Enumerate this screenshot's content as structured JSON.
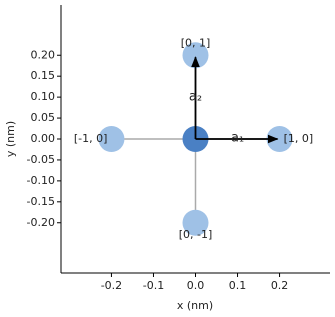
{
  "chart_data": {
    "type": "scatter",
    "xlabel": "x (nm)",
    "ylabel": "y (nm)",
    "x": [
      0,
      0,
      0,
      -0.2,
      0.2
    ],
    "y": [
      0,
      0.2,
      -0.2,
      0,
      0
    ],
    "point_labels": [
      null,
      "[0, 1]",
      "[0, -1]",
      "[-1, 0]",
      "[1, 0]"
    ],
    "colors": [
      "#4a80c4",
      "#9fc1e6",
      "#9fc1e6",
      "#9fc1e6",
      "#9fc1e6"
    ],
    "vectors": [
      {
        "name": "a₁",
        "x": 0.2,
        "y": 0
      },
      {
        "name": "a₂",
        "x": 0,
        "y": 0.2
      }
    ],
    "xlim": [
      -0.32,
      0.32
    ],
    "ylim": [
      -0.32,
      0.32
    ],
    "xticks": [
      -0.2,
      -0.1,
      {
        "value": 0,
        "label": "0.0"
      },
      0.1,
      0.2
    ],
    "yticks": [
      {
        "value": 0.2,
        "label": "0.20"
      },
      {
        "value": 0.15,
        "label": "0.15"
      },
      {
        "value": 0.1,
        "label": "0.10"
      },
      {
        "value": 0.05,
        "label": "0.05"
      },
      {
        "value": 0,
        "label": "0.00"
      },
      {
        "value": -0.05,
        "label": "-0.05"
      },
      {
        "value": -0.1,
        "label": "-0.10"
      },
      {
        "value": -0.15,
        "label": "-0.15"
      },
      {
        "value": -0.2,
        "label": "-0.20"
      }
    ]
  }
}
